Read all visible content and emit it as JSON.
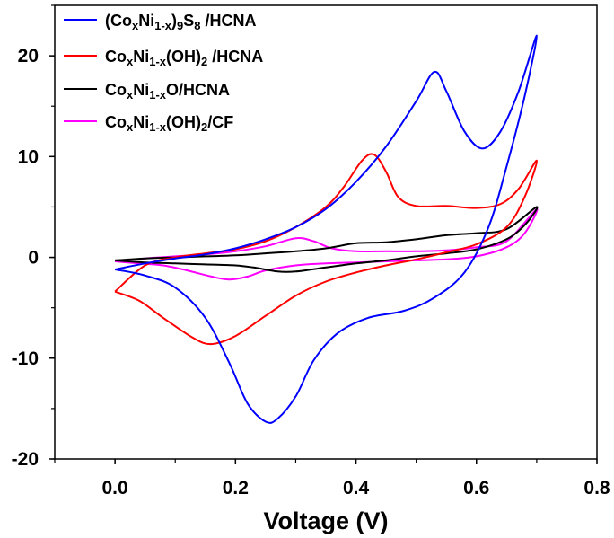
{
  "chart_data": {
    "type": "line",
    "title": "",
    "xlabel": "Voltage (V)",
    "ylabel": "",
    "xlim": [
      -0.1,
      0.8
    ],
    "ylim": [
      -20,
      25
    ],
    "xticks": [
      0.0,
      0.2,
      0.4,
      0.6,
      0.8
    ],
    "xtick_labels": [
      "0.0",
      "0.2",
      "0.4",
      "0.6",
      "0.8"
    ],
    "yticks": [
      -20,
      -10,
      0,
      10,
      20
    ],
    "ytick_labels": [
      "-20",
      "-10",
      "0",
      "10",
      "20"
    ],
    "grid": false,
    "legend_position": "top-left",
    "series": [
      {
        "name": "(CoxNi1-x)9S8 /HCNA",
        "legend": {
          "p1": "(Co",
          "s1": "x",
          "p2": "Ni",
          "s2": "1-x",
          "p3": ")",
          "s3": "9",
          "p4": "S",
          "s4": "8",
          "p5": " /HCNA"
        },
        "color": "#0000ff",
        "points": [
          [
            0.0,
            -1.2
          ],
          [
            0.05,
            -0.6
          ],
          [
            0.1,
            -0.1
          ],
          [
            0.15,
            0.3
          ],
          [
            0.2,
            0.9
          ],
          [
            0.25,
            1.8
          ],
          [
            0.3,
            3.0
          ],
          [
            0.35,
            4.8
          ],
          [
            0.4,
            7.5
          ],
          [
            0.45,
            11.0
          ],
          [
            0.5,
            15.5
          ],
          [
            0.53,
            18.4
          ],
          [
            0.55,
            16.5
          ],
          [
            0.58,
            12.5
          ],
          [
            0.61,
            10.8
          ],
          [
            0.64,
            12.5
          ],
          [
            0.67,
            16.5
          ],
          [
            0.7,
            22.0
          ],
          [
            0.68,
            16.0
          ],
          [
            0.65,
            9.0
          ],
          [
            0.62,
            3.0
          ],
          [
            0.58,
            -1.5
          ],
          [
            0.53,
            -4.0
          ],
          [
            0.48,
            -5.3
          ],
          [
            0.42,
            -6.0
          ],
          [
            0.37,
            -7.5
          ],
          [
            0.33,
            -10.2
          ],
          [
            0.3,
            -13.8
          ],
          [
            0.27,
            -16.0
          ],
          [
            0.25,
            -16.3
          ],
          [
            0.22,
            -14.5
          ],
          [
            0.19,
            -10.5
          ],
          [
            0.15,
            -6.0
          ],
          [
            0.1,
            -3.0
          ],
          [
            0.05,
            -1.8
          ],
          [
            0.0,
            -1.2
          ]
        ]
      },
      {
        "name": "CoxNi1-x(OH)2 /HCNA",
        "legend": {
          "p1": "Co",
          "s1": "x",
          "p2": "Ni",
          "s2": "1-x",
          "p3": "(OH)",
          "s3": "2",
          "p4": " /HCNA",
          "s4": "",
          "p5": ""
        },
        "color": "#ff0000",
        "points": [
          [
            0.0,
            -3.4
          ],
          [
            0.05,
            -0.8
          ],
          [
            0.1,
            0.0
          ],
          [
            0.15,
            0.4
          ],
          [
            0.2,
            0.8
          ],
          [
            0.25,
            1.6
          ],
          [
            0.3,
            3.0
          ],
          [
            0.35,
            5.0
          ],
          [
            0.38,
            7.0
          ],
          [
            0.41,
            9.6
          ],
          [
            0.43,
            10.2
          ],
          [
            0.45,
            8.5
          ],
          [
            0.47,
            6.0
          ],
          [
            0.5,
            5.1
          ],
          [
            0.55,
            5.1
          ],
          [
            0.6,
            4.9
          ],
          [
            0.64,
            5.3
          ],
          [
            0.67,
            6.8
          ],
          [
            0.7,
            9.6
          ],
          [
            0.68,
            6.0
          ],
          [
            0.65,
            3.0
          ],
          [
            0.6,
            1.3
          ],
          [
            0.55,
            0.5
          ],
          [
            0.5,
            -0.2
          ],
          [
            0.45,
            -0.8
          ],
          [
            0.4,
            -1.5
          ],
          [
            0.35,
            -2.4
          ],
          [
            0.3,
            -3.8
          ],
          [
            0.25,
            -5.8
          ],
          [
            0.2,
            -7.8
          ],
          [
            0.16,
            -8.6
          ],
          [
            0.13,
            -8.0
          ],
          [
            0.08,
            -6.0
          ],
          [
            0.04,
            -4.3
          ],
          [
            0.0,
            -3.4
          ]
        ]
      },
      {
        "name": "CoxNi1-xO/HCNA",
        "legend": {
          "p1": "Co",
          "s1": "x",
          "p2": "Ni",
          "s2": "1-x",
          "p3": "O/HCNA",
          "s3": "",
          "p4": "",
          "s4": "",
          "p5": ""
        },
        "color": "#000000",
        "points": [
          [
            0.0,
            -0.3
          ],
          [
            0.05,
            -0.1
          ],
          [
            0.1,
            0.0
          ],
          [
            0.15,
            0.1
          ],
          [
            0.2,
            0.2
          ],
          [
            0.25,
            0.4
          ],
          [
            0.3,
            0.6
          ],
          [
            0.35,
            0.9
          ],
          [
            0.4,
            1.4
          ],
          [
            0.45,
            1.5
          ],
          [
            0.5,
            1.8
          ],
          [
            0.55,
            2.2
          ],
          [
            0.6,
            2.4
          ],
          [
            0.65,
            2.8
          ],
          [
            0.7,
            5.0
          ],
          [
            0.68,
            3.2
          ],
          [
            0.65,
            1.8
          ],
          [
            0.6,
            0.8
          ],
          [
            0.55,
            0.4
          ],
          [
            0.5,
            0.1
          ],
          [
            0.45,
            -0.3
          ],
          [
            0.4,
            -0.6
          ],
          [
            0.35,
            -1.0
          ],
          [
            0.3,
            -1.4
          ],
          [
            0.27,
            -1.4
          ],
          [
            0.23,
            -1.0
          ],
          [
            0.2,
            -0.8
          ],
          [
            0.15,
            -0.7
          ],
          [
            0.1,
            -0.6
          ],
          [
            0.05,
            -0.5
          ],
          [
            0.0,
            -0.3
          ]
        ]
      },
      {
        "name": "CoxNi1-x(OH)2/CF",
        "legend": {
          "p1": "Co",
          "s1": "x",
          "p2": "Ni",
          "s2": "1-x",
          "p3": "(OH)",
          "s3": "2",
          "p4": "/CF",
          "s4": "",
          "p5": ""
        },
        "color": "#ff00ff",
        "points": [
          [
            0.0,
            -0.4
          ],
          [
            0.05,
            -0.1
          ],
          [
            0.1,
            0.1
          ],
          [
            0.15,
            0.3
          ],
          [
            0.2,
            0.6
          ],
          [
            0.25,
            1.1
          ],
          [
            0.3,
            1.9
          ],
          [
            0.33,
            1.6
          ],
          [
            0.36,
            0.9
          ],
          [
            0.4,
            0.6
          ],
          [
            0.45,
            0.6
          ],
          [
            0.5,
            0.6
          ],
          [
            0.55,
            0.7
          ],
          [
            0.6,
            1.0
          ],
          [
            0.65,
            1.6
          ],
          [
            0.7,
            4.8
          ],
          [
            0.68,
            2.4
          ],
          [
            0.65,
            1.0
          ],
          [
            0.6,
            0.1
          ],
          [
            0.55,
            -0.2
          ],
          [
            0.5,
            -0.3
          ],
          [
            0.45,
            -0.4
          ],
          [
            0.4,
            -0.5
          ],
          [
            0.35,
            -0.6
          ],
          [
            0.3,
            -0.8
          ],
          [
            0.25,
            -1.3
          ],
          [
            0.22,
            -1.9
          ],
          [
            0.19,
            -2.2
          ],
          [
            0.16,
            -1.9
          ],
          [
            0.12,
            -1.3
          ],
          [
            0.08,
            -0.8
          ],
          [
            0.04,
            -0.6
          ],
          [
            0.0,
            -0.4
          ]
        ]
      }
    ]
  }
}
